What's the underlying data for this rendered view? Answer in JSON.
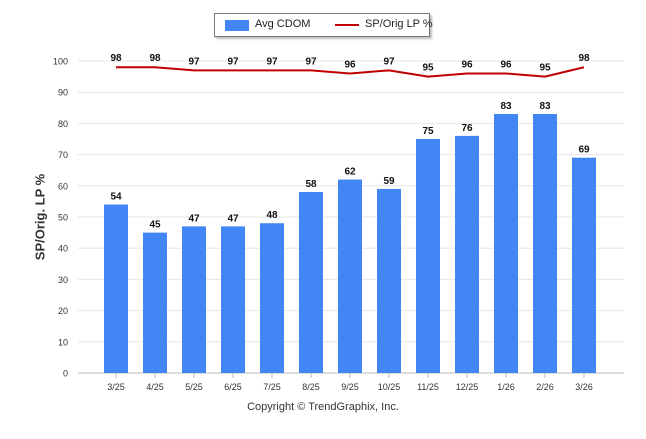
{
  "chart_data": {
    "type": "bar",
    "title": "",
    "xlabel": "",
    "ylabel": "SP/Orig. LP %",
    "ylim": [
      0,
      100
    ],
    "yticks": [
      0,
      10,
      20,
      30,
      40,
      50,
      60,
      70,
      80,
      90,
      100
    ],
    "grid": true,
    "legend_placement": "top-center",
    "categories": [
      "3/25",
      "4/25",
      "5/25",
      "6/25",
      "7/25",
      "8/25",
      "9/25",
      "10/25",
      "11/25",
      "12/25",
      "1/26",
      "2/26",
      "3/26"
    ],
    "series": [
      {
        "name": "Avg CDOM",
        "type": "bar",
        "color": "#4285f4",
        "values": [
          54,
          45,
          47,
          47,
          48,
          58,
          62,
          59,
          75,
          76,
          83,
          83,
          69
        ]
      },
      {
        "name": "SP/Orig LP %",
        "type": "line",
        "color": "#c00000",
        "values": [
          98,
          98,
          97,
          97,
          97,
          97,
          96,
          97,
          95,
          96,
          96,
          95,
          98
        ]
      }
    ]
  },
  "footer": {
    "copyright": "Copyright © TrendGraphix, Inc."
  }
}
